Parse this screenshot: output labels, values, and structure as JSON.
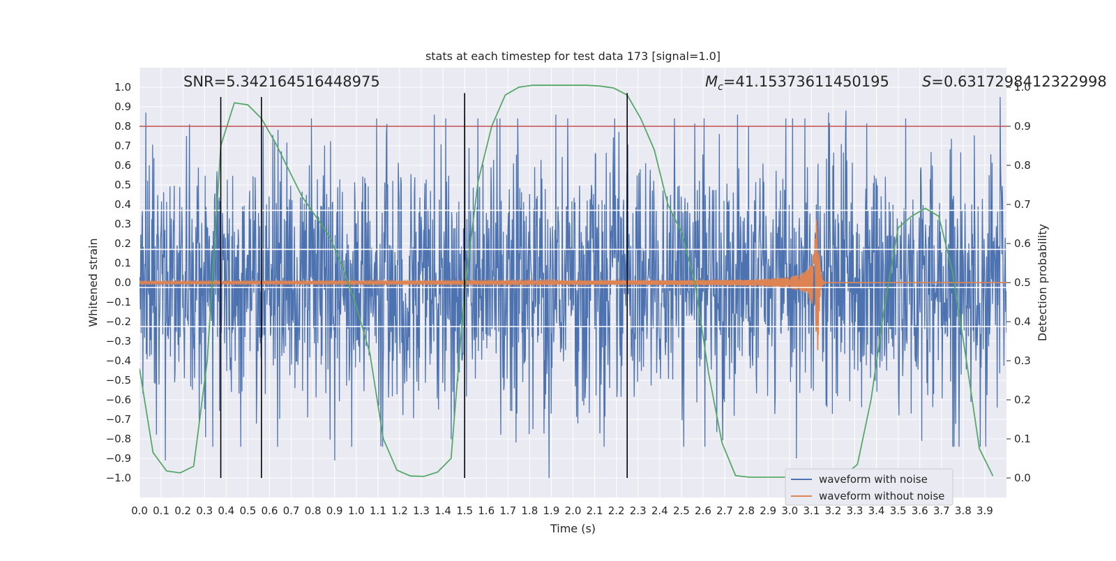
{
  "chart_data": {
    "type": "line",
    "title": "stats at each timestep for test data 173 [signal=1.0]",
    "xlabel": "Time (s)",
    "ylabel": "Whitened strain",
    "y2label": "Detection probability",
    "xlim": [
      0.0,
      4.0
    ],
    "ylim": [
      -1.1,
      1.1
    ],
    "y2lim": [
      -0.05,
      1.05
    ],
    "x_ticks": [
      0.0,
      0.1,
      0.2,
      0.3,
      0.4,
      0.5,
      0.6,
      0.7,
      0.8,
      0.9,
      1.0,
      1.1,
      1.2,
      1.3,
      1.4,
      1.5,
      1.6,
      1.7,
      1.8,
      1.9,
      2.0,
      2.1,
      2.2,
      2.3,
      2.4,
      2.5,
      2.6,
      2.7,
      2.8,
      2.9,
      3.0,
      3.1,
      3.2,
      3.3,
      3.4,
      3.5,
      3.6,
      3.7,
      3.8,
      3.9
    ],
    "y_ticks": [
      -1.0,
      -0.9,
      -0.8,
      -0.7,
      -0.6,
      -0.5,
      -0.4,
      -0.3,
      -0.2,
      -0.1,
      0.0,
      0.1,
      0.2,
      0.3,
      0.4,
      0.5,
      0.6,
      0.7,
      0.8,
      0.9,
      1.0
    ],
    "y2_ticks": [
      0.0,
      0.1,
      0.2,
      0.3,
      0.4,
      0.5,
      0.6,
      0.7,
      0.8,
      0.9,
      1.0
    ],
    "grid": true,
    "legend_position": "bottom-right",
    "annotations": {
      "snr": "SNR=5.342164516448975",
      "mc_symbol": "M",
      "mc_sub": "c",
      "mc_value": "=41.15373611450195",
      "s_symbol": "S",
      "s_value": "=0.6317298412322998"
    },
    "threshold": {
      "y2": 0.9,
      "color": "#c44e52"
    },
    "vertical_markers": [
      {
        "x": 0.375,
        "y_from": -1.0,
        "y_to": 0.95
      },
      {
        "x": 0.5625,
        "y_from": -1.0,
        "y_to": 0.95
      },
      {
        "x": 1.5,
        "y_from": -1.0,
        "y_to": 0.97
      },
      {
        "x": 2.25,
        "y_from": -1.0,
        "y_to": 0.97
      }
    ],
    "white_hlines": [
      0.37,
      0.17,
      -0.025,
      -0.225
    ],
    "series": [
      {
        "name": "waveform with noise",
        "color": "#4c72b0",
        "noise_model": {
          "x_start": 0.0,
          "x_end": 4.0,
          "samples": 2048,
          "sigma": 0.32,
          "seed": 173
        },
        "peaks": [
          [
            0.03,
            0.87
          ],
          [
            0.12,
            -0.91
          ],
          [
            0.23,
            0.81
          ],
          [
            0.57,
            0.8
          ],
          [
            0.9,
            -0.91
          ],
          [
            1.36,
            0.86
          ],
          [
            1.5,
            0.86
          ],
          [
            1.89,
            -1.0
          ],
          [
            1.92,
            0.86
          ],
          [
            2.76,
            0.86
          ],
          [
            3.03,
            -0.9
          ],
          [
            3.18,
            0.87
          ],
          [
            3.26,
            0.88
          ],
          [
            3.61,
            -0.81
          ],
          [
            3.97,
            0.95
          ]
        ]
      },
      {
        "name": "waveform without noise",
        "color": "#dd8452",
        "chirp_model": {
          "x_start": 0.0,
          "merger": 3.13,
          "ringdown_end": 3.16,
          "peak_amplitude": 0.35,
          "min_amplitude": 0.006
        }
      },
      {
        "name": "detection probability",
        "axis": "y2",
        "color": "#55a868",
        "points": [
          [
            0.0,
            0.28
          ],
          [
            0.0625,
            0.065
          ],
          [
            0.125,
            0.018
          ],
          [
            0.1875,
            0.013
          ],
          [
            0.25,
            0.03
          ],
          [
            0.3125,
            0.3
          ],
          [
            0.375,
            0.85
          ],
          [
            0.4375,
            0.96
          ],
          [
            0.5,
            0.955
          ],
          [
            0.5625,
            0.92
          ],
          [
            0.625,
            0.86
          ],
          [
            0.6875,
            0.79
          ],
          [
            0.75,
            0.72
          ],
          [
            0.8125,
            0.67
          ],
          [
            0.875,
            0.62
          ],
          [
            0.9375,
            0.54
          ],
          [
            1.0,
            0.44
          ],
          [
            1.0625,
            0.32
          ],
          [
            1.125,
            0.1
          ],
          [
            1.1875,
            0.02
          ],
          [
            1.25,
            0.005
          ],
          [
            1.3125,
            0.004
          ],
          [
            1.375,
            0.015
          ],
          [
            1.4375,
            0.05
          ],
          [
            1.5,
            0.48
          ],
          [
            1.5625,
            0.76
          ],
          [
            1.625,
            0.9
          ],
          [
            1.6875,
            0.98
          ],
          [
            1.75,
            1.0
          ],
          [
            1.8125,
            1.005
          ],
          [
            1.875,
            1.005
          ],
          [
            1.9375,
            1.005
          ],
          [
            2.0,
            1.005
          ],
          [
            2.0625,
            1.005
          ],
          [
            2.125,
            1.003
          ],
          [
            2.1875,
            0.998
          ],
          [
            2.25,
            0.98
          ],
          [
            2.3125,
            0.92
          ],
          [
            2.375,
            0.84
          ],
          [
            2.4375,
            0.7
          ],
          [
            2.5,
            0.63
          ],
          [
            2.5625,
            0.5
          ],
          [
            2.625,
            0.27
          ],
          [
            2.6875,
            0.09
          ],
          [
            2.75,
            0.006
          ],
          [
            2.8125,
            0.002
          ],
          [
            2.875,
            0.002
          ],
          [
            2.9375,
            0.002
          ],
          [
            3.0,
            0.002
          ],
          [
            3.0625,
            0.002
          ],
          [
            3.125,
            0.002
          ],
          [
            3.1875,
            0.002
          ],
          [
            3.25,
            0.005
          ],
          [
            3.3125,
            0.035
          ],
          [
            3.375,
            0.2
          ],
          [
            3.4375,
            0.44
          ],
          [
            3.5,
            0.64
          ],
          [
            3.5625,
            0.67
          ],
          [
            3.625,
            0.69
          ],
          [
            3.6875,
            0.67
          ],
          [
            3.75,
            0.53
          ],
          [
            3.8125,
            0.31
          ],
          [
            3.875,
            0.075
          ],
          [
            3.9375,
            0.005
          ]
        ]
      }
    ]
  }
}
